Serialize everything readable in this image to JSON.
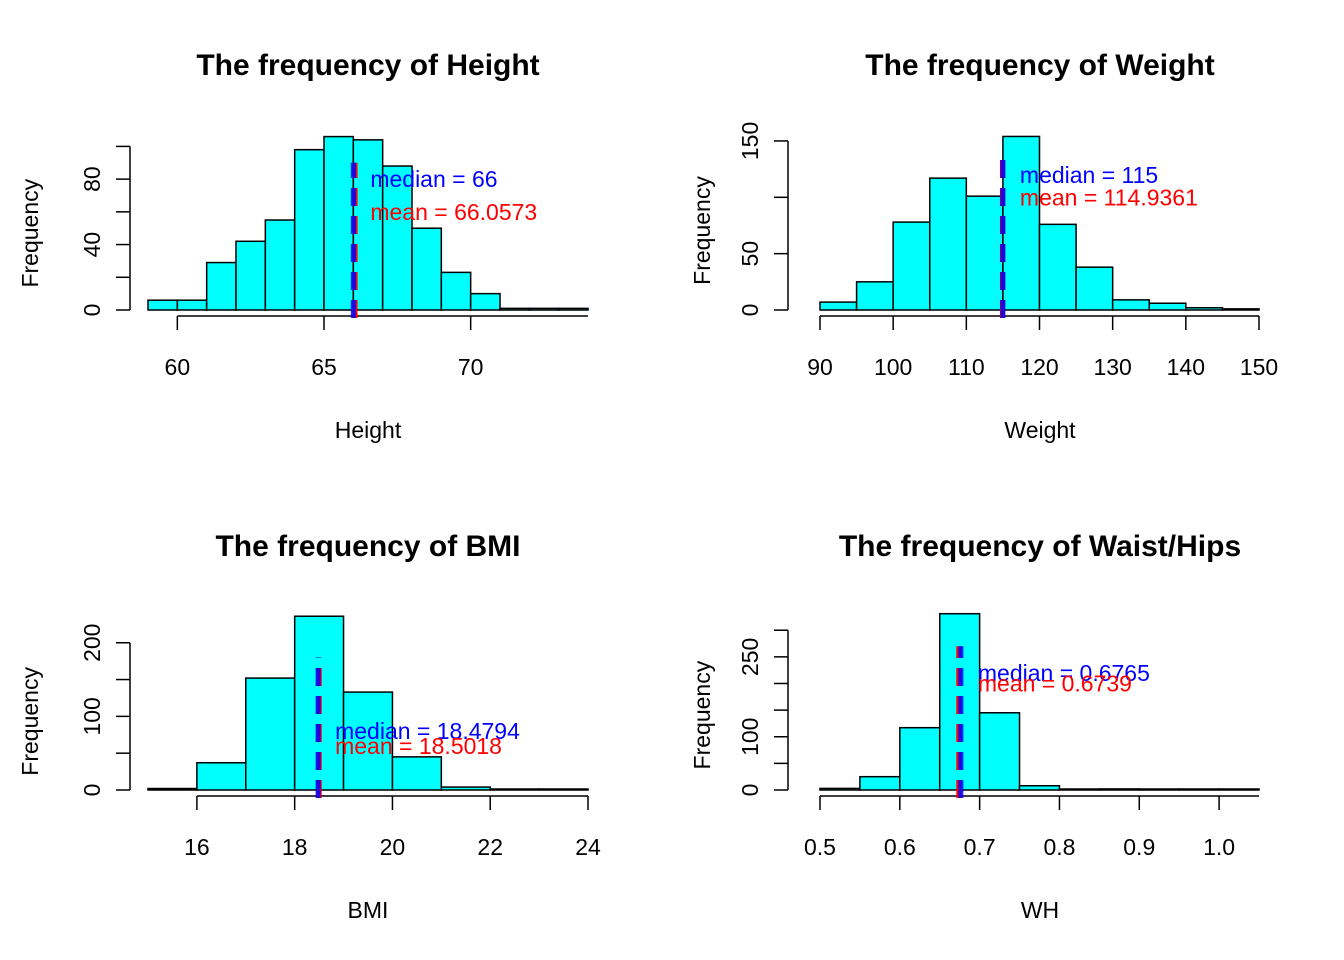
{
  "colors": {
    "bar_fill": "#00FFFF",
    "bar_stroke": "#000000",
    "median_color": "#0000FF",
    "mean_color": "#FF0000",
    "axis_color": "#000000"
  },
  "chart_data": [
    {
      "type": "bar",
      "title": "The frequency of Height",
      "xlabel": "Height",
      "ylabel": "Frequency",
      "bin_edges": [
        59,
        60,
        61,
        62,
        63,
        64,
        65,
        66,
        67,
        68,
        69,
        70,
        71,
        72,
        73,
        74
      ],
      "values": [
        6,
        6,
        29,
        42,
        55,
        98,
        106,
        104,
        88,
        50,
        23,
        10,
        1,
        1,
        1
      ],
      "xlim": [
        59,
        74
      ],
      "ylim": [
        0,
        100
      ],
      "x_ticks": [
        60,
        65,
        70
      ],
      "y_ticks": [
        0,
        40,
        80
      ],
      "y_minor_ticks": [
        20,
        60,
        100
      ],
      "median": 66,
      "mean": 66.0573,
      "median_text": "median =  66",
      "mean_text": "mean =  66.0573",
      "median_label_y": 80,
      "mean_label_y": 60
    },
    {
      "type": "bar",
      "title": "The frequency of Weight",
      "xlabel": "Weight",
      "ylabel": "Frequency",
      "bin_edges": [
        90,
        95,
        100,
        105,
        110,
        115,
        120,
        125,
        130,
        135,
        140,
        145,
        150
      ],
      "values": [
        7,
        25,
        78,
        117,
        101,
        154,
        76,
        38,
        9,
        6,
        2,
        1
      ],
      "xlim": [
        90,
        150
      ],
      "ylim": [
        0,
        150
      ],
      "x_ticks": [
        90,
        100,
        110,
        120,
        130,
        140,
        150
      ],
      "y_ticks": [
        0,
        50,
        150
      ],
      "y_minor_ticks": [
        100
      ],
      "median": 115,
      "mean": 114.9361,
      "median_text": "median =  115",
      "mean_text": "mean =  114.9361",
      "median_label_y": 120,
      "mean_label_y": 100
    },
    {
      "type": "bar",
      "title": "The frequency of BMI",
      "xlabel": "BMI",
      "ylabel": "Frequency",
      "bin_edges": [
        15,
        16,
        17,
        18,
        19,
        20,
        21,
        22,
        23,
        24
      ],
      "values": [
        2,
        37,
        152,
        236,
        133,
        45,
        4,
        1,
        1
      ],
      "xlim": [
        15,
        24
      ],
      "ylim": [
        0,
        200
      ],
      "x_ticks": [
        16,
        18,
        20,
        22,
        24
      ],
      "y_ticks": [
        0,
        100,
        200
      ],
      "y_minor_ticks": [
        50,
        150
      ],
      "median": 18.4794,
      "mean": 18.5018,
      "median_text": "median =  18.4794",
      "mean_text": "mean =  18.5018",
      "median_label_y": 80,
      "mean_label_y": 60
    },
    {
      "type": "bar",
      "title": "The frequency of Waist/Hips",
      "xlabel": "WH",
      "ylabel": "Frequency",
      "bin_edges": [
        0.5,
        0.55,
        0.6,
        0.65,
        0.7,
        0.75,
        0.8,
        0.85,
        0.9,
        0.95,
        1.0,
        1.05
      ],
      "values": [
        3,
        25,
        117,
        331,
        145,
        8,
        1,
        2,
        1,
        1,
        1
      ],
      "xlim": [
        0.5,
        1.05
      ],
      "ylim": [
        0,
        300
      ],
      "x_ticks": [
        0.5,
        0.6,
        0.7,
        0.8,
        0.9,
        1.0
      ],
      "x_tick_labels": [
        "0.5",
        "0.6",
        "0.7",
        "0.8",
        "0.9",
        "1.0"
      ],
      "y_ticks": [
        0,
        100,
        250
      ],
      "y_minor_ticks": [
        50,
        150,
        200,
        300
      ],
      "median": 0.6765,
      "mean": 0.6739,
      "median_text": "median =  0.6765",
      "mean_text": "mean =  0.6739",
      "median_label_y": 220,
      "mean_label_y": 200
    }
  ]
}
